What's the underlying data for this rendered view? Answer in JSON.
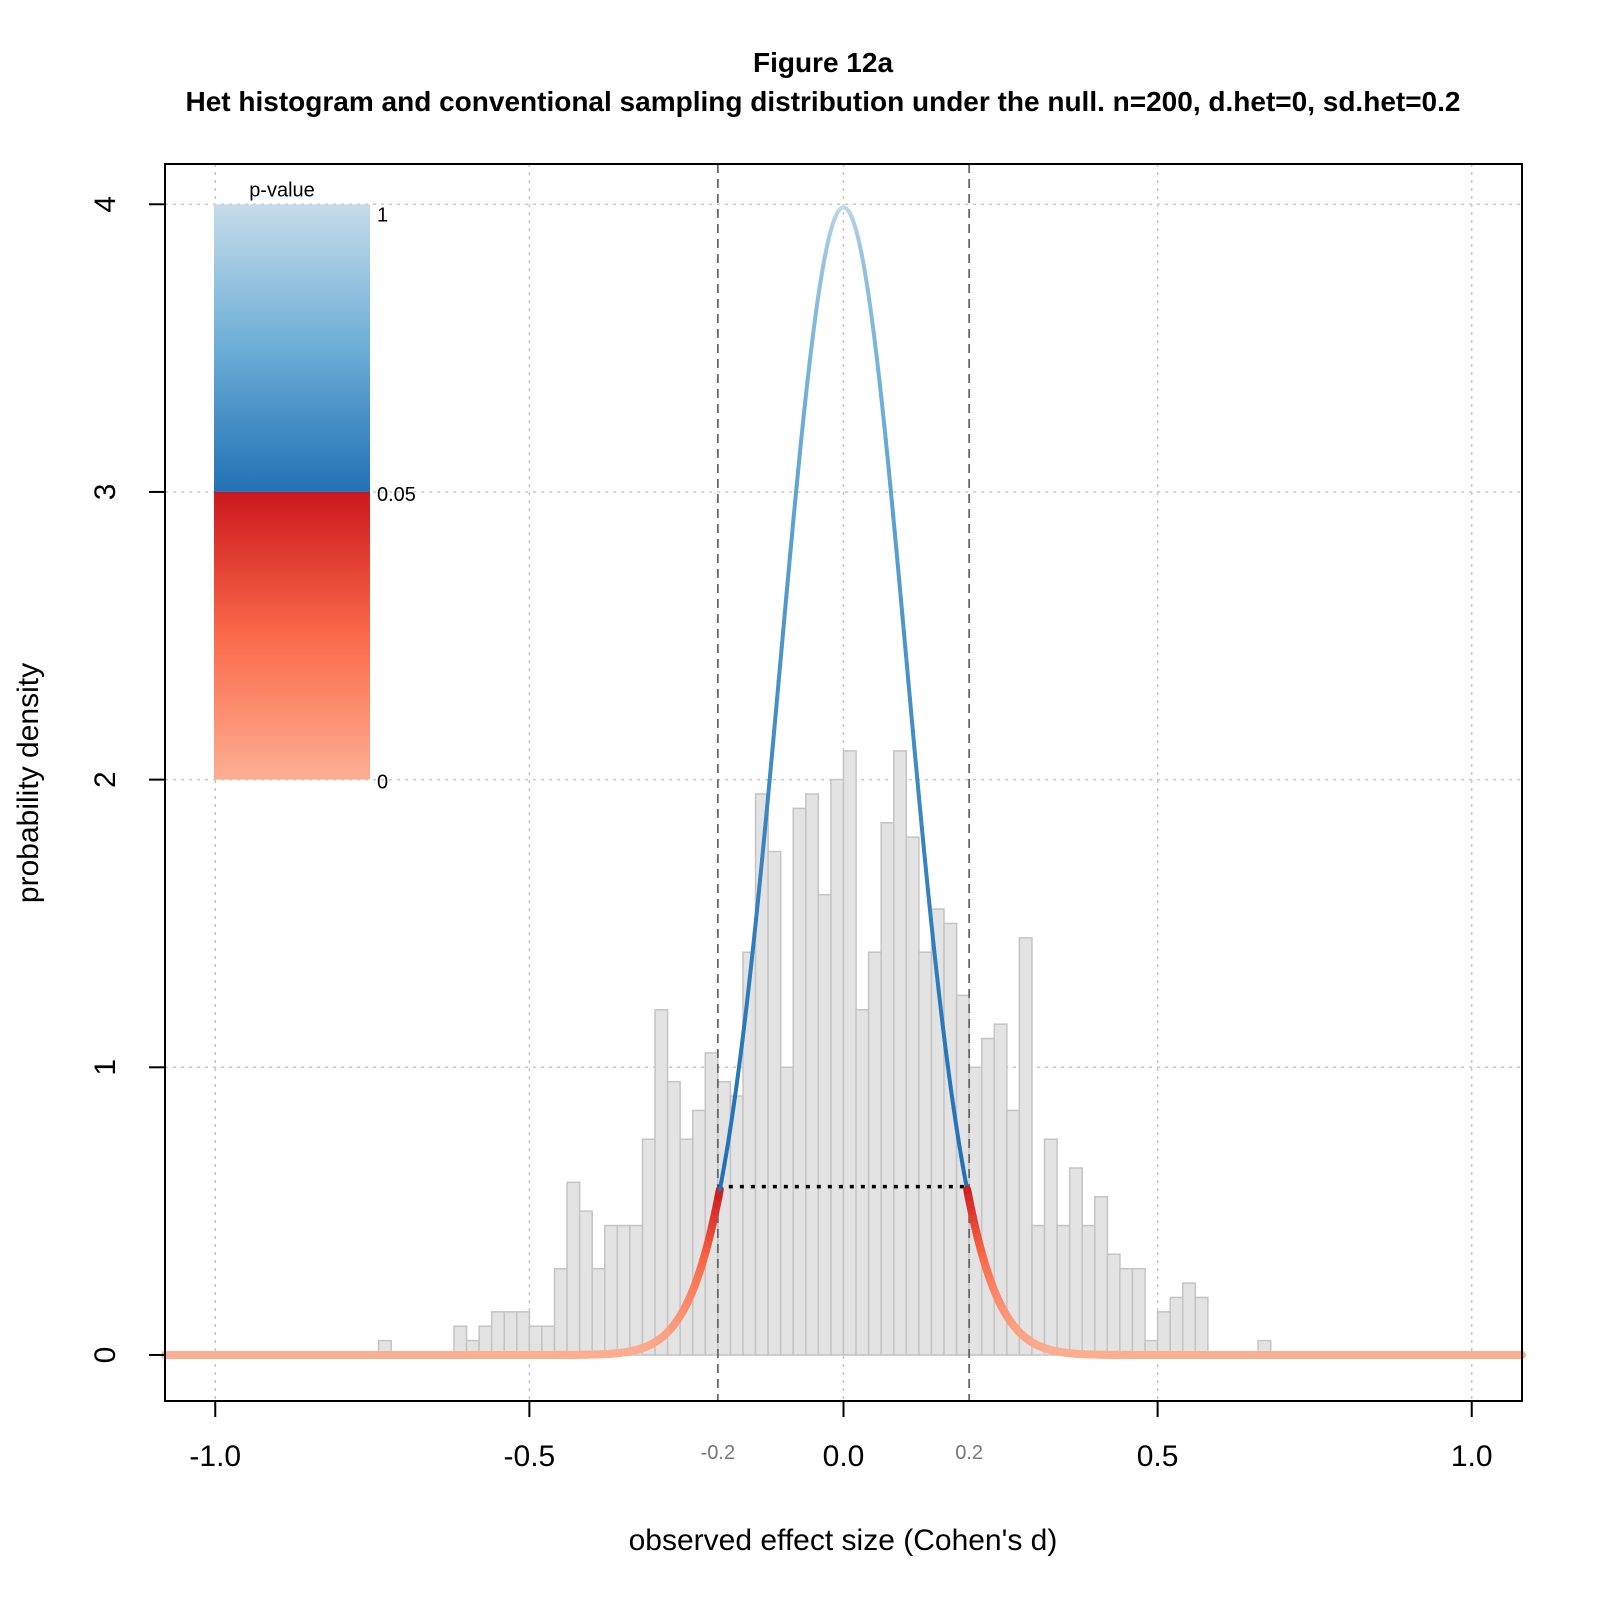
{
  "chart_data": {
    "type": "bar",
    "title": "Figure 12a",
    "subtitle": "Het histogram and conventional sampling distribution under the null. n=200, d.het=0, sd.het=0.2",
    "xlabel": "observed effect size (Cohen's d)",
    "ylabel": "probability density",
    "xlim": [
      -1.08,
      1.08
    ],
    "ylim": [
      -0.16,
      4.14
    ],
    "grid": true,
    "x_ticks": [
      -1.0,
      -0.5,
      0.0,
      0.5,
      1.0
    ],
    "x_tick_labels": [
      "-1.0",
      "-0.5",
      "0.0",
      "0.5",
      "1.0"
    ],
    "y_ticks": [
      0,
      1,
      2,
      3,
      4
    ],
    "y_tick_labels": [
      "0",
      "1",
      "2",
      "3",
      "4"
    ],
    "critical_values": [
      -0.2,
      0.2
    ],
    "critical_labels": [
      "-0.2",
      "0.2"
    ],
    "critical_density": 0.585,
    "histogram": {
      "bin_width": 0.02,
      "bins_start": [
        -0.74,
        -0.62,
        -0.6,
        -0.58,
        -0.56,
        -0.54,
        -0.52,
        -0.5,
        -0.48,
        -0.46,
        -0.44,
        -0.42,
        -0.4,
        -0.38,
        -0.36,
        -0.34,
        -0.32,
        -0.3,
        -0.28,
        -0.26,
        -0.24,
        -0.22,
        -0.2,
        -0.18,
        -0.16,
        -0.14,
        -0.12,
        -0.1,
        -0.08,
        -0.06,
        -0.04,
        -0.02,
        0.0,
        0.02,
        0.04,
        0.06,
        0.08,
        0.1,
        0.12,
        0.14,
        0.16,
        0.18,
        0.2,
        0.22,
        0.24,
        0.26,
        0.28,
        0.3,
        0.32,
        0.34,
        0.36,
        0.38,
        0.4,
        0.42,
        0.44,
        0.46,
        0.48,
        0.5,
        0.52,
        0.54,
        0.56,
        0.66
      ],
      "density": [
        0.05,
        0.1,
        0.05,
        0.1,
        0.15,
        0.15,
        0.15,
        0.1,
        0.1,
        0.3,
        0.6,
        0.5,
        0.3,
        0.45,
        0.45,
        0.45,
        0.75,
        1.2,
        0.95,
        0.75,
        0.85,
        1.05,
        0.95,
        0.9,
        1.4,
        1.95,
        1.75,
        1.0,
        1.9,
        1.95,
        1.6,
        2.0,
        2.1,
        1.2,
        1.4,
        1.85,
        2.1,
        1.8,
        1.4,
        1.55,
        1.5,
        1.25,
        1.0,
        1.1,
        1.15,
        0.85,
        1.45,
        0.45,
        0.75,
        0.45,
        0.65,
        0.45,
        0.55,
        0.35,
        0.3,
        0.3,
        0.05,
        0.15,
        0.2,
        0.25,
        0.2,
        0.05
      ]
    },
    "curve": {
      "name": "conventional sampling distribution",
      "distribution": "normal",
      "mean": 0,
      "sd": 0.1
    },
    "legend": {
      "title": "p-value",
      "position": "top-left",
      "labels": [
        "1",
        "0.05",
        "0"
      ]
    },
    "colors": {
      "hist_fill": "#e3e3e3",
      "hist_stroke": "#c4c4c4",
      "grid": "#c8c8c8",
      "blue_light": "#c6dbea",
      "blue_mid": "#6baed6",
      "blue_dark": "#2171b5",
      "red_dark": "#cb181d",
      "red_mid": "#fb6a4a",
      "red_light": "#fcae91",
      "critical_line": "#666666"
    }
  }
}
